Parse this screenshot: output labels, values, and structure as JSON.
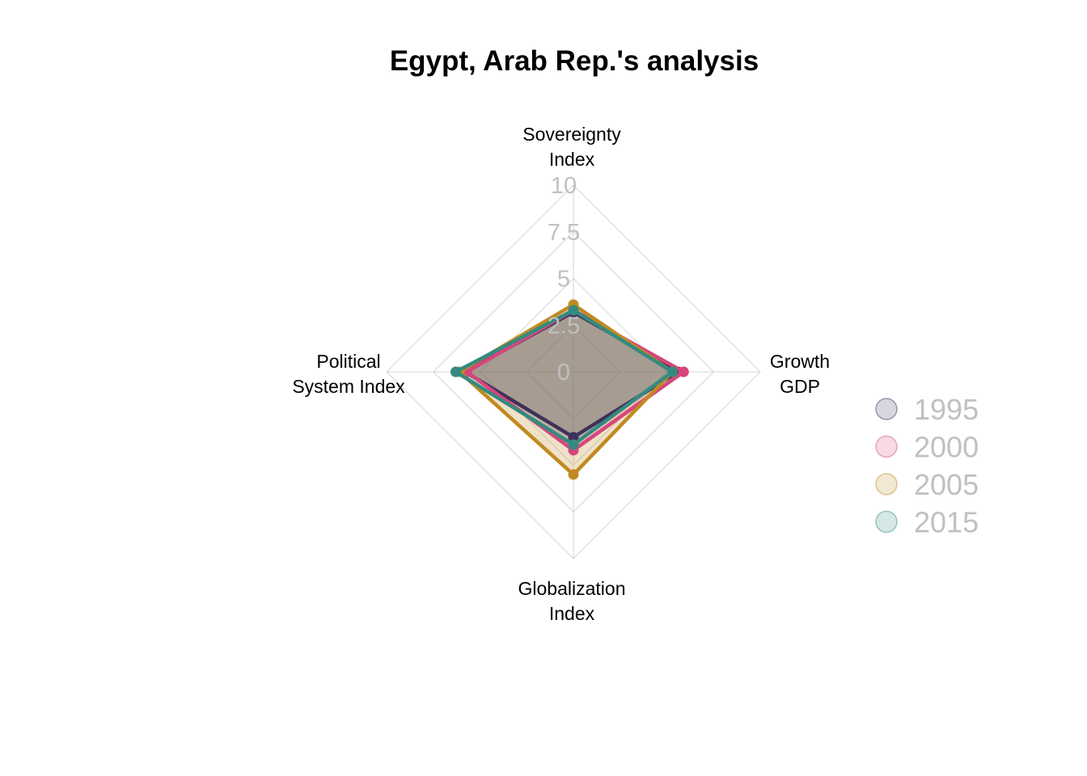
{
  "chart_data": {
    "type": "radar",
    "title": "Egypt, Arab Rep.'s analysis",
    "axes": [
      {
        "key": "sov",
        "lines": [
          "Sovereignty",
          "Index"
        ]
      },
      {
        "key": "gdp",
        "lines": [
          "Growth",
          "GDP"
        ]
      },
      {
        "key": "glob",
        "lines": [
          "Globalization",
          "Index"
        ]
      },
      {
        "key": "pol",
        "lines": [
          "Political",
          "System Index"
        ]
      }
    ],
    "ticks": [
      "0",
      "2.5",
      "5",
      "7.5",
      "10"
    ],
    "range": [
      0,
      10
    ],
    "grid": true,
    "legend_position": "right",
    "series": [
      {
        "name": "1995",
        "color": "#3f3159",
        "values": [
          3.2,
          5.6,
          3.5,
          5.8
        ]
      },
      {
        "name": "2000",
        "color": "#d6467d",
        "values": [
          3.3,
          5.9,
          4.2,
          5.7
        ]
      },
      {
        "name": "2005",
        "color": "#c08a22",
        "values": [
          3.6,
          5.3,
          5.5,
          6.1
        ]
      },
      {
        "name": "2015",
        "color": "#348a80",
        "values": [
          3.3,
          5.3,
          3.9,
          6.3
        ]
      }
    ]
  }
}
